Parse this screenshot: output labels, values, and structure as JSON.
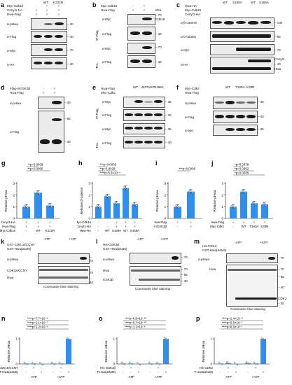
{
  "panels": {
    "a": {
      "label": "a",
      "rows": [
        "Myc-Cdk16",
        "Conyl1-HA",
        "Hwa-Flag"
      ],
      "cols": [
        "",
        "WT",
        "K222R"
      ],
      "conds": [
        [
          "-",
          "+",
          "+"
        ],
        [
          "+",
          "+",
          "+"
        ],
        [
          "+",
          "+",
          "+"
        ]
      ],
      "blots": [
        "α-pHwa",
        "α-Flag",
        "α-Myc",
        "α-HA"
      ],
      "kda": [
        "40",
        "40",
        "70",
        "40"
      ]
    },
    "b": {
      "label": "b",
      "rows": [
        "Myc-Cdk16",
        "Hwa-Flag"
      ],
      "conds": [
        [
          "-",
          "+"
        ],
        [
          "+",
          "+"
        ]
      ],
      "blots": [
        "α-Myc",
        "α-Flag",
        "α-Myc",
        "α-Flag"
      ],
      "side": [
        "IP:Flag",
        "TCL"
      ],
      "kda": [
        "70",
        "40",
        "70",
        "40"
      ],
      "tags": [
        "kDa",
        "Cdk16"
      ]
    },
    "c": {
      "label": "c",
      "rows": [
        "Hwa-HA",
        "Myc-Cdk16",
        "Conyl1-HA"
      ],
      "cols": [
        "WT",
        "S168A",
        "WT",
        "S168A"
      ],
      "blots": [
        "α-β-catenin",
        "α-α-tubulin",
        "α-Myc",
        "α-HA"
      ],
      "kda": [
        "100",
        "55",
        "70",
        "40"
      ],
      "tags": [
        "Conyl1",
        "Hwa"
      ]
    },
    "d": {
      "label": "d",
      "rows": [
        "Flag-mGSK3β",
        "Hwa-Flag"
      ],
      "conds": [
        [
          "-",
          "+"
        ],
        [
          "+",
          "+"
        ]
      ],
      "blots": [
        "α-pHwa",
        "α-Flag"
      ],
      "kda": [
        "40",
        "55",
        "40"
      ]
    },
    "e": {
      "label": "e",
      "rows": [
        "Hwa-Flag",
        "Myc-Cdk2"
      ],
      "cols": [
        "WT",
        "ΔPPNSP",
        "S168A"
      ],
      "blots": [
        "α-Myc",
        "α-Flag",
        "α-Myc",
        "α-Flag"
      ],
      "side": [
        "IP:Flag",
        "TCL"
      ],
      "kda": [
        "35",
        "40",
        "35",
        "40"
      ]
    },
    "f": {
      "label": "f",
      "rows": [
        "Myc-Cdk2",
        "Hwa-Flag"
      ],
      "cols": [
        "WT",
        "T160A",
        "K33R"
      ],
      "blots": [
        "α-pHwa",
        "α-Flag",
        "α-Myc"
      ],
      "kda": [
        "40",
        "40",
        "35"
      ]
    },
    "g": {
      "label": "g",
      "ylabel": "Relative pHwa",
      "stats": [
        "**p=0.0039",
        "**p=0.0060"
      ],
      "xrows": [
        "Conyl1-HA",
        "Hwa-Flag",
        "Myc-Cdk16"
      ],
      "xconds": [
        [
          "+",
          "+",
          "+"
        ],
        [
          "+",
          "+",
          "+"
        ],
        [
          "-",
          "WT",
          "K222R"
        ]
      ]
    },
    "h": {
      "label": "h",
      "ylabel": "Relative β-catenin",
      "stats": [
        "***p=0.0003",
        "**p=0.0020",
        "****p=5.6×10⁻⁶"
      ],
      "xrows": [
        "Myc-Cdk16",
        "Conyl1-HA",
        "Hwa-HA"
      ],
      "xconds": [
        [
          "-",
          "-",
          "+",
          "+",
          "+"
        ],
        [
          "-",
          "-",
          "+",
          "+",
          "+"
        ],
        [
          "-",
          "WT",
          "S168A",
          "WT",
          "S168A"
        ]
      ]
    },
    "i": {
      "label": "i",
      "ylabel": "Relative pHwa",
      "stats": [
        "***p=0.0006"
      ],
      "xrows": [
        "Hwa-Flag",
        "Flag-mGSK3β"
      ],
      "xconds": [
        [
          "+",
          "+"
        ],
        [
          "-",
          "+"
        ]
      ]
    },
    "j": {
      "label": "j",
      "ylabel": "Relative pHwa",
      "stats": [
        "*p=0.0379",
        "*p=0.0392",
        "*p=0.0335"
      ],
      "xrows": [
        "Hwa-Flag",
        "Myc-Cdk2"
      ],
      "xconds": [
        [
          "+",
          "+",
          "+",
          "+"
        ],
        [
          "-",
          "WT",
          "T160A",
          "K33R"
        ]
      ]
    },
    "k": {
      "label": "k",
      "rows": [
        "GST-CDK16/CCNY",
        "GST-Hwa(ΔN46)"
      ],
      "groups": [
        "-ATP",
        "+ATP"
      ],
      "blots": [
        "α-pHwa"
      ],
      "stain": "Coomassie blue staining",
      "tags": [
        "CDK16/CCNY",
        "Hwa"
      ],
      "kda": [
        "70",
        "70",
        "40"
      ]
    },
    "l": {
      "label": "l",
      "rows": [
        "His-GSK3β",
        "GST-Hwa(ΔN46)"
      ],
      "groups": [
        "-ATP",
        "+ATP"
      ],
      "blots": [
        "α-pHwa"
      ],
      "stain": "Coomassie blue staining",
      "tags": [
        "Hwa",
        "GSK3β"
      ],
      "kda": [
        "70",
        "70",
        "55",
        "40"
      ]
    },
    "m": {
      "label": "m",
      "rows": [
        "His-CDK2",
        "GST-Hwa(ΔN46)"
      ],
      "groups": [
        "-ATP",
        "+ATP"
      ],
      "blots": [
        "α-pHwa"
      ],
      "stain": "Coomassie blue staining",
      "tags": [
        "Hwa",
        "CDK2"
      ],
      "kda": [
        "70",
        "70",
        "55",
        "40",
        "35"
      ]
    },
    "n": {
      "label": "n",
      "ylabel": "Relative pHwa",
      "stats": [
        "****p=7.7×10⁻⁸",
        "****p=1.1×10⁻⁷",
        "****p=2.2×10⁻⁸"
      ],
      "xrows": [
        "CDK16/CCNY",
        "GST-Hwa(ΔN46)"
      ],
      "groups": [
        "-ATP",
        "+ATP"
      ]
    },
    "o": {
      "label": "o",
      "ylabel": "Relative pHwa",
      "stats": [
        "****p=6.8×10⁻¹⁰",
        "****p=9.7×10⁻¹⁰",
        "****p=1.1×10⁻⁹"
      ],
      "xrows": [
        "His-GSK3β",
        "GST-Hwa(ΔN46)"
      ],
      "groups": [
        "-ATP",
        "+ATP"
      ]
    },
    "p": {
      "label": "p",
      "ylabel": "Relative pHwa",
      "stats": [
        "****p=2.4×10⁻⁸",
        "****p=6.6×10⁻⁷",
        "****p=8.5×10⁻⁷"
      ],
      "xrows": [
        "His-CDK2",
        "GST-Hwa(ΔN46)"
      ],
      "groups": [
        "-ATP",
        "+ATP"
      ]
    }
  },
  "chart_data": [
    {
      "panel": "g",
      "type": "bar",
      "ylim": [
        0,
        3
      ],
      "yticks": [
        "0",
        "1",
        "2",
        "3"
      ],
      "values": [
        1.0,
        2.2,
        1.1
      ]
    },
    {
      "panel": "h",
      "type": "bar",
      "ylim": [
        0,
        3
      ],
      "yticks": [
        "0",
        "1",
        "2",
        "3"
      ],
      "values": [
        1.0,
        1.9,
        1.3,
        2.6,
        1.2
      ]
    },
    {
      "panel": "i",
      "type": "bar",
      "ylim": [
        0,
        3
      ],
      "yticks": [
        "0",
        "1",
        "2",
        "3"
      ],
      "values": [
        1.0,
        2.3
      ]
    },
    {
      "panel": "j",
      "type": "bar",
      "ylim": [
        0,
        3
      ],
      "yticks": [
        "0",
        "1",
        "2",
        "3"
      ],
      "values": [
        1.0,
        2.3,
        1.3,
        1.2
      ]
    },
    {
      "panel": "n",
      "type": "bar",
      "ylim": [
        0,
        1
      ],
      "yticks": [
        "0",
        "1"
      ],
      "values": [
        0.02,
        0.02,
        0.0,
        0.02,
        0.02,
        1.0
      ]
    },
    {
      "panel": "o",
      "type": "bar",
      "ylim": [
        0,
        1
      ],
      "yticks": [
        "0",
        "1"
      ],
      "values": [
        0.02,
        0.02,
        0.0,
        0.02,
        0.02,
        1.0
      ]
    },
    {
      "panel": "p",
      "type": "bar",
      "ylim": [
        0,
        1
      ],
      "yticks": [
        "0",
        "1"
      ],
      "values": [
        0.02,
        0.04,
        0.0,
        0.04,
        0.02,
        1.0
      ]
    }
  ],
  "colors": {
    "bar": "#2f8ff0",
    "band": "#1a1a1a"
  }
}
